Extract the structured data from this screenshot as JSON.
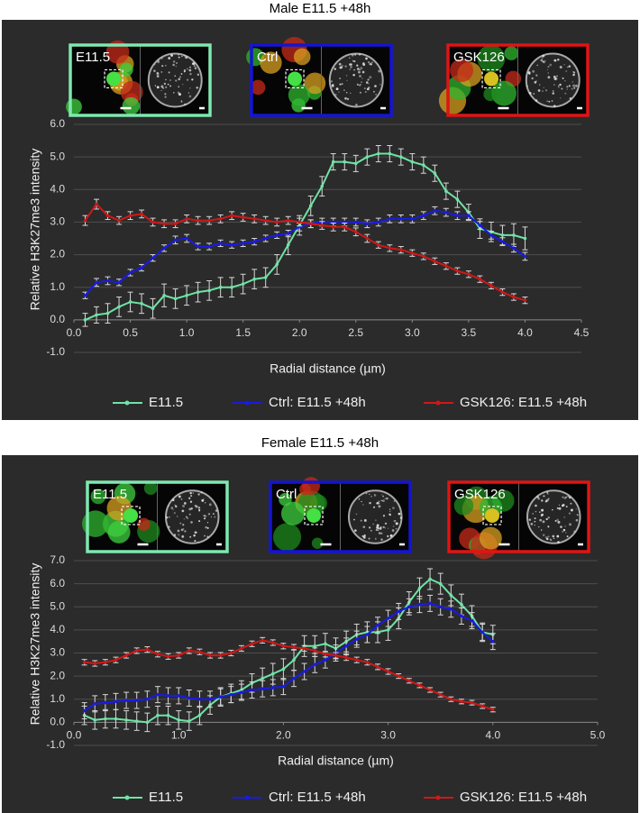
{
  "chart_data": [
    {
      "type": "line",
      "title": "Male E11.5 +48h",
      "xlabel": "Radial distance (µm)",
      "ylabel": "Relative H3K27me3 intensity",
      "insets": [
        {
          "label": "E11.5",
          "color": "#7ee8b0"
        },
        {
          "label": "Ctrl",
          "color": "#1414d4"
        },
        {
          "label": "GSK126",
          "color": "#e01414"
        }
      ],
      "x": [
        0.1,
        0.2,
        0.3,
        0.4,
        0.5,
        0.6,
        0.7,
        0.8,
        0.9,
        1.0,
        1.1,
        1.2,
        1.3,
        1.4,
        1.5,
        1.6,
        1.7,
        1.8,
        1.9,
        2.0,
        2.1,
        2.2,
        2.3,
        2.4,
        2.5,
        2.6,
        2.7,
        2.8,
        2.9,
        3.0,
        3.1,
        3.2,
        3.3,
        3.4,
        3.5,
        3.6,
        3.7,
        3.8,
        3.9,
        4.0
      ],
      "series": [
        {
          "name": "E11.5",
          "color": "#6fe3a5",
          "values": [
            0.0,
            0.15,
            0.2,
            0.4,
            0.55,
            0.5,
            0.35,
            0.75,
            0.65,
            0.75,
            0.85,
            0.9,
            1.0,
            1.0,
            1.1,
            1.25,
            1.3,
            1.7,
            2.3,
            2.9,
            3.5,
            4.1,
            4.85,
            4.85,
            4.8,
            5.0,
            5.1,
            5.1,
            5.0,
            4.85,
            4.75,
            4.5,
            3.95,
            3.7,
            3.3,
            2.8,
            2.7,
            2.6,
            2.6,
            2.5
          ],
          "errors": [
            0.2,
            0.25,
            0.3,
            0.3,
            0.3,
            0.3,
            0.3,
            0.35,
            0.3,
            0.3,
            0.3,
            0.3,
            0.3,
            0.3,
            0.3,
            0.3,
            0.3,
            0.3,
            0.3,
            0.3,
            0.3,
            0.3,
            0.25,
            0.25,
            0.25,
            0.25,
            0.25,
            0.25,
            0.25,
            0.25,
            0.25,
            0.25,
            0.25,
            0.25,
            0.25,
            0.3,
            0.3,
            0.3,
            0.35,
            0.35
          ]
        },
        {
          "name": "Ctrl: E11.5 +48h",
          "color": "#1a1ae6",
          "values": [
            0.75,
            1.15,
            1.2,
            1.15,
            1.45,
            1.6,
            1.9,
            2.2,
            2.45,
            2.5,
            2.25,
            2.25,
            2.35,
            2.3,
            2.35,
            2.4,
            2.5,
            2.6,
            2.65,
            2.85,
            2.95,
            3.0,
            3.0,
            3.0,
            3.0,
            2.95,
            3.0,
            3.1,
            3.1,
            3.1,
            3.2,
            3.35,
            3.3,
            3.2,
            3.2,
            2.9,
            2.6,
            2.4,
            2.2,
            1.95
          ],
          "errors": [
            0.1,
            0.12,
            0.12,
            0.1,
            0.1,
            0.1,
            0.1,
            0.1,
            0.12,
            0.12,
            0.1,
            0.1,
            0.1,
            0.1,
            0.1,
            0.1,
            0.1,
            0.1,
            0.1,
            0.12,
            0.12,
            0.12,
            0.12,
            0.12,
            0.12,
            0.12,
            0.12,
            0.12,
            0.12,
            0.12,
            0.12,
            0.12,
            0.12,
            0.12,
            0.12,
            0.12,
            0.12,
            0.12,
            0.12,
            0.12
          ]
        },
        {
          "name": "GSK126: E11.5 +48h",
          "color": "#d01818",
          "values": [
            3.05,
            3.55,
            3.2,
            3.05,
            3.2,
            3.25,
            3.0,
            2.95,
            2.95,
            3.1,
            3.05,
            3.05,
            3.1,
            3.2,
            3.15,
            3.1,
            3.05,
            3.0,
            3.05,
            3.0,
            2.95,
            2.9,
            2.85,
            2.85,
            2.7,
            2.5,
            2.3,
            2.2,
            2.15,
            2.05,
            1.95,
            1.8,
            1.65,
            1.5,
            1.4,
            1.25,
            1.05,
            0.85,
            0.7,
            0.6
          ],
          "errors": [
            0.15,
            0.15,
            0.12,
            0.12,
            0.12,
            0.12,
            0.12,
            0.12,
            0.12,
            0.12,
            0.12,
            0.12,
            0.12,
            0.12,
            0.12,
            0.12,
            0.12,
            0.12,
            0.12,
            0.12,
            0.12,
            0.12,
            0.12,
            0.12,
            0.12,
            0.12,
            0.1,
            0.1,
            0.1,
            0.1,
            0.1,
            0.1,
            0.1,
            0.1,
            0.1,
            0.1,
            0.1,
            0.1,
            0.1,
            0.1
          ]
        }
      ],
      "xlim": [
        0,
        4.5
      ],
      "ylim": [
        -1,
        6
      ],
      "xticks": [
        {
          "value": 0,
          "label": "0.0"
        },
        {
          "value": 0.5,
          "label": "0.5"
        },
        {
          "value": 1,
          "label": "1.0"
        },
        {
          "value": 1.5,
          "label": "1.5"
        },
        {
          "value": 2,
          "label": "2.0"
        },
        {
          "value": 2.5,
          "label": "2.5"
        },
        {
          "value": 3,
          "label": "3.0"
        },
        {
          "value": 3.5,
          "label": "3.5"
        },
        {
          "value": 4,
          "label": "4.0"
        },
        {
          "value": 4.5,
          "label": "4.5"
        }
      ],
      "yticks": [
        {
          "value": -1,
          "label": "-1.0"
        },
        {
          "value": 0,
          "label": "0.0"
        },
        {
          "value": 1,
          "label": "1.0"
        },
        {
          "value": 2,
          "label": "2.0"
        },
        {
          "value": 3,
          "label": "3.0"
        },
        {
          "value": 4,
          "label": "4.0"
        },
        {
          "value": 5,
          "label": "5.0"
        },
        {
          "value": 6,
          "label": "6.0"
        }
      ],
      "grid": true,
      "legend": "bottom"
    },
    {
      "type": "line",
      "title": "Female E11.5 +48h",
      "xlabel": "Radial distance (µm)",
      "ylabel": "Relative H3K27me3 intensity",
      "insets": [
        {
          "label": "E11.5",
          "color": "#7ee8b0"
        },
        {
          "label": "Ctrl",
          "color": "#1414d4"
        },
        {
          "label": "GSK126",
          "color": "#e01414"
        }
      ],
      "x": [
        0.1,
        0.2,
        0.3,
        0.4,
        0.5,
        0.6,
        0.7,
        0.8,
        0.9,
        1.0,
        1.1,
        1.2,
        1.3,
        1.4,
        1.5,
        1.6,
        1.7,
        1.8,
        1.9,
        2.0,
        2.1,
        2.2,
        2.3,
        2.4,
        2.5,
        2.6,
        2.7,
        2.8,
        2.9,
        3.0,
        3.1,
        3.2,
        3.3,
        3.4,
        3.5,
        3.6,
        3.7,
        3.8,
        3.9,
        4.0
      ],
      "series": [
        {
          "name": "E11.5",
          "color": "#6fe3a5",
          "values": [
            0.3,
            0.1,
            0.15,
            0.15,
            0.1,
            0.05,
            0.0,
            0.3,
            0.3,
            0.1,
            0.05,
            0.3,
            0.75,
            1.1,
            1.25,
            1.4,
            1.7,
            1.9,
            2.1,
            2.3,
            2.7,
            3.3,
            3.3,
            3.4,
            3.2,
            3.5,
            3.8,
            3.9,
            3.9,
            4.0,
            4.5,
            5.2,
            5.8,
            6.2,
            6.0,
            5.5,
            5.1,
            4.6,
            3.9,
            3.8
          ],
          "errors": [
            0.4,
            0.4,
            0.4,
            0.4,
            0.4,
            0.4,
            0.4,
            0.4,
            0.4,
            0.4,
            0.4,
            0.4,
            0.4,
            0.4,
            0.4,
            0.4,
            0.4,
            0.45,
            0.45,
            0.45,
            0.45,
            0.45,
            0.45,
            0.45,
            0.45,
            0.45,
            0.45,
            0.45,
            0.45,
            0.45,
            0.45,
            0.45,
            0.45,
            0.45,
            0.45,
            0.45,
            0.45,
            0.45,
            0.4,
            0.4
          ]
        },
        {
          "name": "Ctrl: E11.5 +48h",
          "color": "#1a1ae6",
          "values": [
            0.5,
            0.8,
            0.85,
            0.9,
            0.95,
            0.95,
            1.0,
            1.2,
            1.15,
            1.15,
            1.05,
            1.0,
            1.0,
            1.1,
            1.2,
            1.3,
            1.4,
            1.45,
            1.5,
            1.55,
            1.9,
            2.2,
            2.5,
            2.7,
            3.0,
            3.3,
            3.6,
            3.8,
            4.2,
            4.5,
            4.8,
            5.0,
            5.1,
            5.15,
            5.0,
            4.9,
            4.6,
            4.4,
            3.9,
            3.5
          ],
          "errors": [
            0.35,
            0.35,
            0.35,
            0.35,
            0.35,
            0.35,
            0.35,
            0.35,
            0.35,
            0.35,
            0.35,
            0.35,
            0.35,
            0.35,
            0.35,
            0.35,
            0.35,
            0.35,
            0.35,
            0.35,
            0.35,
            0.35,
            0.35,
            0.35,
            0.35,
            0.35,
            0.35,
            0.35,
            0.35,
            0.35,
            0.35,
            0.35,
            0.35,
            0.35,
            0.35,
            0.35,
            0.35,
            0.35,
            0.35,
            0.35
          ]
        },
        {
          "name": "GSK126: E11.5 +48h",
          "color": "#d01818",
          "values": [
            2.6,
            2.55,
            2.6,
            2.7,
            2.9,
            3.1,
            3.15,
            2.95,
            2.85,
            2.9,
            3.1,
            3.05,
            2.9,
            2.9,
            3.0,
            3.2,
            3.4,
            3.55,
            3.45,
            3.3,
            3.25,
            3.2,
            3.1,
            2.95,
            2.9,
            2.8,
            2.7,
            2.6,
            2.4,
            2.2,
            2.0,
            1.8,
            1.6,
            1.4,
            1.2,
            1.0,
            0.9,
            0.85,
            0.7,
            0.55
          ],
          "errors": [
            0.12,
            0.12,
            0.12,
            0.12,
            0.12,
            0.12,
            0.12,
            0.12,
            0.12,
            0.12,
            0.12,
            0.12,
            0.12,
            0.12,
            0.12,
            0.12,
            0.12,
            0.12,
            0.12,
            0.12,
            0.12,
            0.12,
            0.12,
            0.12,
            0.12,
            0.12,
            0.12,
            0.12,
            0.12,
            0.12,
            0.1,
            0.1,
            0.1,
            0.1,
            0.1,
            0.1,
            0.1,
            0.1,
            0.1,
            0.1
          ]
        }
      ],
      "xlim": [
        0,
        5
      ],
      "ylim": [
        -1,
        7
      ],
      "xticks": [
        {
          "value": 0,
          "label": "0.0"
        },
        {
          "value": 1,
          "label": "1.0"
        },
        {
          "value": 2,
          "label": "2.0"
        },
        {
          "value": 3,
          "label": "3.0"
        },
        {
          "value": 4,
          "label": "4.0"
        },
        {
          "value": 5,
          "label": "5.0"
        }
      ],
      "yticks": [
        {
          "value": -1,
          "label": "-1.0"
        },
        {
          "value": 0,
          "label": "0.0"
        },
        {
          "value": 1,
          "label": "1.0"
        },
        {
          "value": 2,
          "label": "2.0"
        },
        {
          "value": 3,
          "label": "3.0"
        },
        {
          "value": 4,
          "label": "4.0"
        },
        {
          "value": 5,
          "label": "5.0"
        },
        {
          "value": 6,
          "label": "6.0"
        },
        {
          "value": 7,
          "label": "7.0"
        }
      ],
      "grid": true,
      "legend": "bottom"
    }
  ]
}
